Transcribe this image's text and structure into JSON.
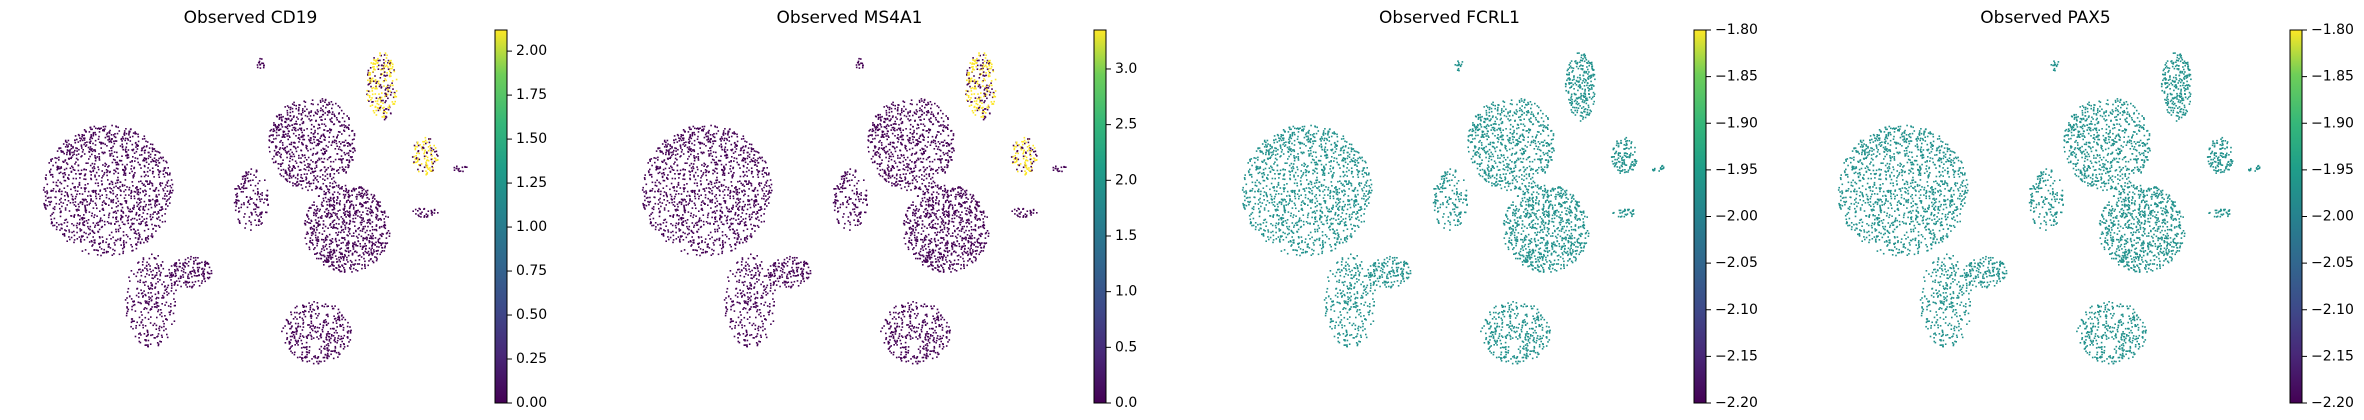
{
  "chart_data": [
    {
      "type": "scatter",
      "title": "Observed CD19",
      "point_color": "#440154",
      "highlight_color": "#fde725",
      "ylim": [
        0,
        2.12
      ],
      "yticks": [
        {
          "value": 0,
          "label": "0.00"
        },
        {
          "value": 0.25,
          "label": "0.25"
        },
        {
          "value": 0.5,
          "label": "0.50"
        },
        {
          "value": 0.75,
          "label": "0.75"
        },
        {
          "value": 1,
          "label": "1.00"
        },
        {
          "value": 1.25,
          "label": "1.25"
        },
        {
          "value": 1.5,
          "label": "1.50"
        },
        {
          "value": 1.75,
          "label": "1.75"
        },
        {
          "value": 2,
          "label": "2.00"
        }
      ]
    },
    {
      "type": "scatter",
      "title": "Observed MS4A1",
      "point_color": "#440154",
      "highlight_color": "#fde725",
      "ylim": [
        0,
        3.35
      ],
      "yticks": [
        {
          "value": 0,
          "label": "0.0"
        },
        {
          "value": 0.5,
          "label": "0.5"
        },
        {
          "value": 1,
          "label": "1.0"
        },
        {
          "value": 1.5,
          "label": "1.5"
        },
        {
          "value": 2,
          "label": "2.0"
        },
        {
          "value": 2.5,
          "label": "2.5"
        },
        {
          "value": 3,
          "label": "3.0"
        }
      ]
    },
    {
      "type": "scatter",
      "title": "Observed FCRL1",
      "point_color": "#21918c",
      "ylim": [
        -2.2,
        -1.8
      ],
      "yticks": [
        {
          "value": -2.2,
          "label": "−2.20"
        },
        {
          "value": -2.15,
          "label": "−2.15"
        },
        {
          "value": -2.1,
          "label": "−2.10"
        },
        {
          "value": -2.05,
          "label": "−2.05"
        },
        {
          "value": -2,
          "label": "−2.00"
        },
        {
          "value": -1.95,
          "label": "−1.95"
        },
        {
          "value": -1.9,
          "label": "−1.90"
        },
        {
          "value": -1.85,
          "label": "−1.85"
        },
        {
          "value": -1.8,
          "label": "−1.80"
        }
      ]
    },
    {
      "type": "scatter",
      "title": "Observed PAX5",
      "point_color": "#21918c",
      "ylim": [
        -2.2,
        -1.8
      ],
      "yticks": [
        {
          "value": -2.2,
          "label": "−2.20"
        },
        {
          "value": -2.15,
          "label": "−2.15"
        },
        {
          "value": -2.1,
          "label": "−2.10"
        },
        {
          "value": -2.05,
          "label": "−2.05"
        },
        {
          "value": -2,
          "label": "−2.00"
        },
        {
          "value": -1.95,
          "label": "−1.95"
        },
        {
          "value": -1.9,
          "label": "−1.90"
        },
        {
          "value": -1.85,
          "label": "−1.85"
        },
        {
          "value": -1.8,
          "label": "−1.80"
        }
      ]
    }
  ]
}
